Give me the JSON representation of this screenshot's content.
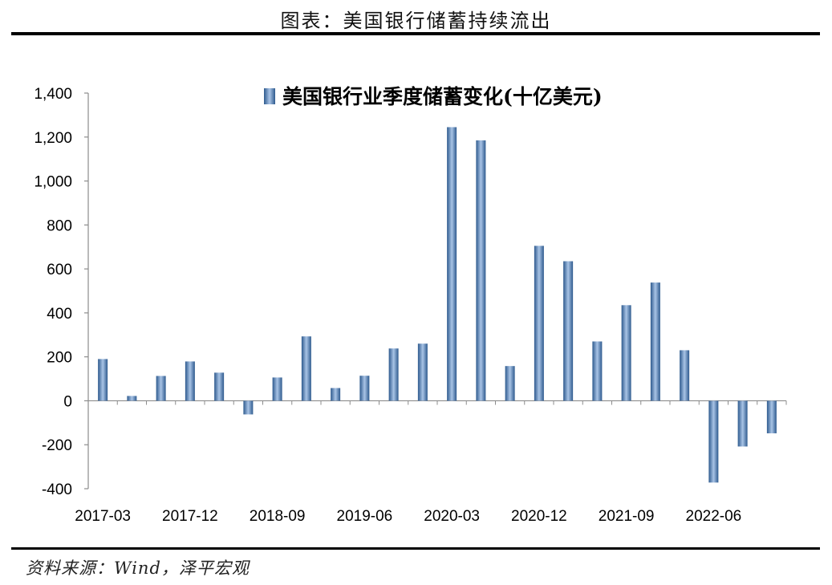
{
  "header": {
    "title": "图表：美国银行储蓄持续流出"
  },
  "footer": {
    "source": "资料来源：Wind，泽平宏观"
  },
  "chart_data": {
    "type": "bar",
    "legend": "美国银行业季度储蓄变化(十亿美元)",
    "legend_position": "top-center",
    "grid": false,
    "ylim": [
      -400,
      1400
    ],
    "yticks": [
      -400,
      -200,
      0,
      200,
      400,
      600,
      800,
      1000,
      1200,
      1400
    ],
    "ytick_labels": [
      "-400",
      "-200",
      "0",
      "200",
      "400",
      "600",
      "800",
      "1,000",
      "1,200",
      "1,400"
    ],
    "categories": [
      "2017-03",
      "2017-06",
      "2017-09",
      "2017-12",
      "2018-03",
      "2018-06",
      "2018-09",
      "2018-12",
      "2019-03",
      "2019-06",
      "2019-09",
      "2019-12",
      "2020-03",
      "2020-06",
      "2020-09",
      "2020-12",
      "2021-03",
      "2021-06",
      "2021-09",
      "2021-12",
      "2022-03",
      "2022-06",
      "2022-09",
      "2022-12"
    ],
    "xtick_labels": [
      "2017-03",
      "2017-12",
      "2018-09",
      "2019-06",
      "2020-03",
      "2020-12",
      "2021-09",
      "2022-06"
    ],
    "series": [
      {
        "name": "美国银行业季度储蓄变化(十亿美元)",
        "color": "#4f81bd",
        "values": [
          190,
          22,
          113,
          179,
          128,
          -62,
          106,
          293,
          58,
          114,
          238,
          260,
          1245,
          1185,
          158,
          705,
          635,
          270,
          435,
          538,
          230,
          -372,
          -208,
          -148
        ]
      }
    ]
  }
}
